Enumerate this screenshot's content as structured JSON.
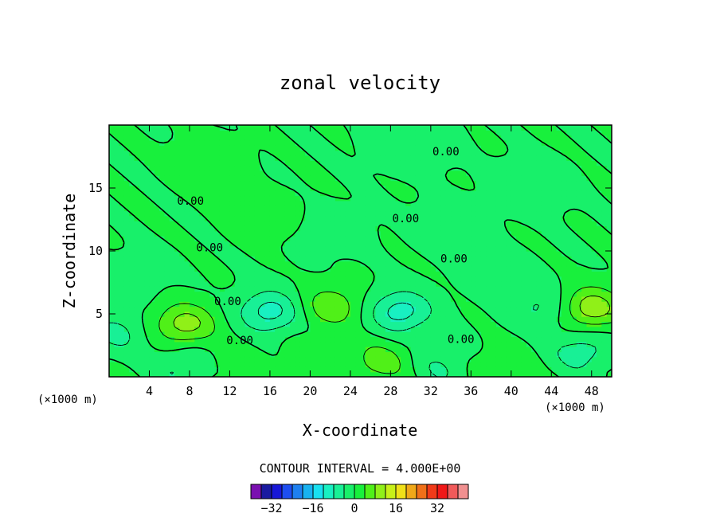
{
  "chart_data": {
    "type": "heatmap",
    "title": "zonal velocity",
    "xlabel": "X-coordinate",
    "ylabel": "Z-coordinate",
    "x_unit": "(×1000 m)",
    "x_unit_right": "(×1000 m)",
    "xlim": [
      0,
      50
    ],
    "ylim": [
      0,
      20
    ],
    "x_ticks": [
      4,
      8,
      12,
      16,
      20,
      24,
      28,
      32,
      36,
      40,
      44,
      48
    ],
    "y_ticks": [
      5,
      10,
      15
    ],
    "contour_interval_text": "CONTOUR INTERVAL = 4.000E+00",
    "contour_labels": [
      {
        "text": "0.00",
        "x": 33.5,
        "z": 17.9
      },
      {
        "text": "0.00",
        "x": 8.1,
        "z": 14.0
      },
      {
        "text": "0.00",
        "x": 29.5,
        "z": 12.6
      },
      {
        "text": "0.00",
        "x": 10.0,
        "z": 10.3
      },
      {
        "text": "0.00",
        "x": 34.3,
        "z": 9.4
      },
      {
        "text": "0.00",
        "x": 11.8,
        "z": 6.0
      },
      {
        "text": "0.00",
        "x": 13.0,
        "z": 2.9
      },
      {
        "text": "0.00",
        "x": 35.0,
        "z": 3.0
      }
    ],
    "features": [
      {
        "x": 7.5,
        "z": 4.2,
        "value": 10
      },
      {
        "x": 16.0,
        "z": 5.2,
        "value": -10
      },
      {
        "x": 22.0,
        "z": 5.6,
        "value": 7
      },
      {
        "x": 29.0,
        "z": 5.2,
        "value": -10
      },
      {
        "x": 48.0,
        "z": 5.5,
        "value": 11
      },
      {
        "x": 7.5,
        "z": 0.8,
        "value": -5
      },
      {
        "x": 27.0,
        "z": 1.2,
        "value": 6
      },
      {
        "x": 33.0,
        "z": 0.8,
        "value": -4
      },
      {
        "x": 43.0,
        "z": 5.5,
        "value": -5
      },
      {
        "x": 47.0,
        "z": 2.0,
        "value": -6
      },
      {
        "x": 0.8,
        "z": 3.5,
        "value": -5
      },
      {
        "x": 39.0,
        "z": 1.0,
        "value": 3
      },
      {
        "x": 20.0,
        "z": 1.2,
        "value": 3
      },
      {
        "x": 12.0,
        "z": 1.0,
        "value": 3
      },
      {
        "x": 3.0,
        "z": 8.0,
        "value": -2
      },
      {
        "x": 22.0,
        "z": 11.5,
        "value": -2
      },
      {
        "x": 34.0,
        "z": 12.0,
        "value": -2
      },
      {
        "x": 16.0,
        "z": 12.5,
        "value": 1.5
      },
      {
        "x": 42.0,
        "z": 15.0,
        "value": -2
      },
      {
        "x": 30.0,
        "z": 18.5,
        "value": -2
      },
      {
        "x": 10.0,
        "z": 17.0,
        "value": 1
      },
      {
        "x": 39.0,
        "z": 7.8,
        "value": -2
      }
    ],
    "colorbar": {
      "ticks": [
        -32,
        -16,
        0,
        16,
        32
      ],
      "colors": [
        "#7a10b0",
        "#1a1aa0",
        "#1818d8",
        "#1e4ef0",
        "#1e80f0",
        "#18b2f0",
        "#18e0f0",
        "#18f0c2",
        "#18f096",
        "#18f06a",
        "#18f03c",
        "#50f018",
        "#90f018",
        "#c8f018",
        "#f0e018",
        "#f0a818",
        "#f07018",
        "#f03a18",
        "#f01818",
        "#f05a5a",
        "#f09090"
      ],
      "min": -40,
      "max": 44
    }
  }
}
